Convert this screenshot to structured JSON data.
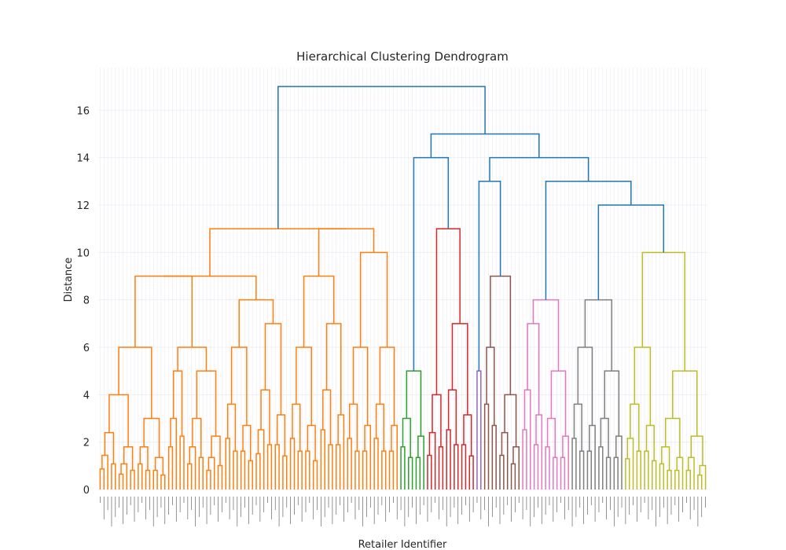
{
  "chart_data": {
    "type": "dendrogram",
    "title": "Hierarchical Clustering Dendrogram",
    "xlabel": "Retailer Identifier",
    "ylabel": "Distance",
    "ylim": [
      0,
      17.8
    ],
    "yticks": [
      0,
      2,
      4,
      6,
      8,
      10,
      12,
      14,
      16
    ],
    "grid": true,
    "leaf_count": 160,
    "leaf_labels_legible": false,
    "clusters": [
      {
        "color": "#ff7f0e",
        "leaves": [
          0,
          78
        ],
        "root_height": 11
      },
      {
        "color": "#2ca02c",
        "leaves": [
          79,
          85
        ],
        "root_height": 5
      },
      {
        "color": "#d62728",
        "leaves": [
          86,
          98
        ],
        "root_height": 11
      },
      {
        "color": "#9467bd",
        "leaves": [
          99,
          100
        ],
        "root_height": 5
      },
      {
        "color": "#8c564b",
        "leaves": [
          101,
          110
        ],
        "root_height": 9
      },
      {
        "color": "#e377c2",
        "leaves": [
          111,
          123
        ],
        "root_height": 8
      },
      {
        "color": "#7f7f7f",
        "leaves": [
          124,
          137
        ],
        "root_height": 8
      },
      {
        "color": "#bcbd22",
        "leaves": [
          138,
          159
        ],
        "root_height": 10
      }
    ],
    "upper_merges": [
      {
        "color": "#1f77b4",
        "left": "green",
        "right": "red",
        "height": 14
      },
      {
        "color": "#1f77b4",
        "left": "purple",
        "right": "brown",
        "height": 13
      },
      {
        "color": "#1f77b4",
        "left": "gray",
        "right": "olive",
        "height": 12
      },
      {
        "color": "#1f77b4",
        "left": "pink",
        "right": "gray+olive",
        "height": 13
      },
      {
        "color": "#1f77b4",
        "left": "purple+brown",
        "right": "pink+gray+olive",
        "height": 14
      },
      {
        "color": "#1f77b4",
        "left": "green+red",
        "right": "purple..olive",
        "height": 15
      },
      {
        "color": "#1f77b4",
        "left": "orange",
        "right": "rest",
        "height": 17
      }
    ],
    "colors": {
      "above_threshold": "#1f77b4",
      "grid": "#ebebf2",
      "text": "#262626"
    }
  }
}
